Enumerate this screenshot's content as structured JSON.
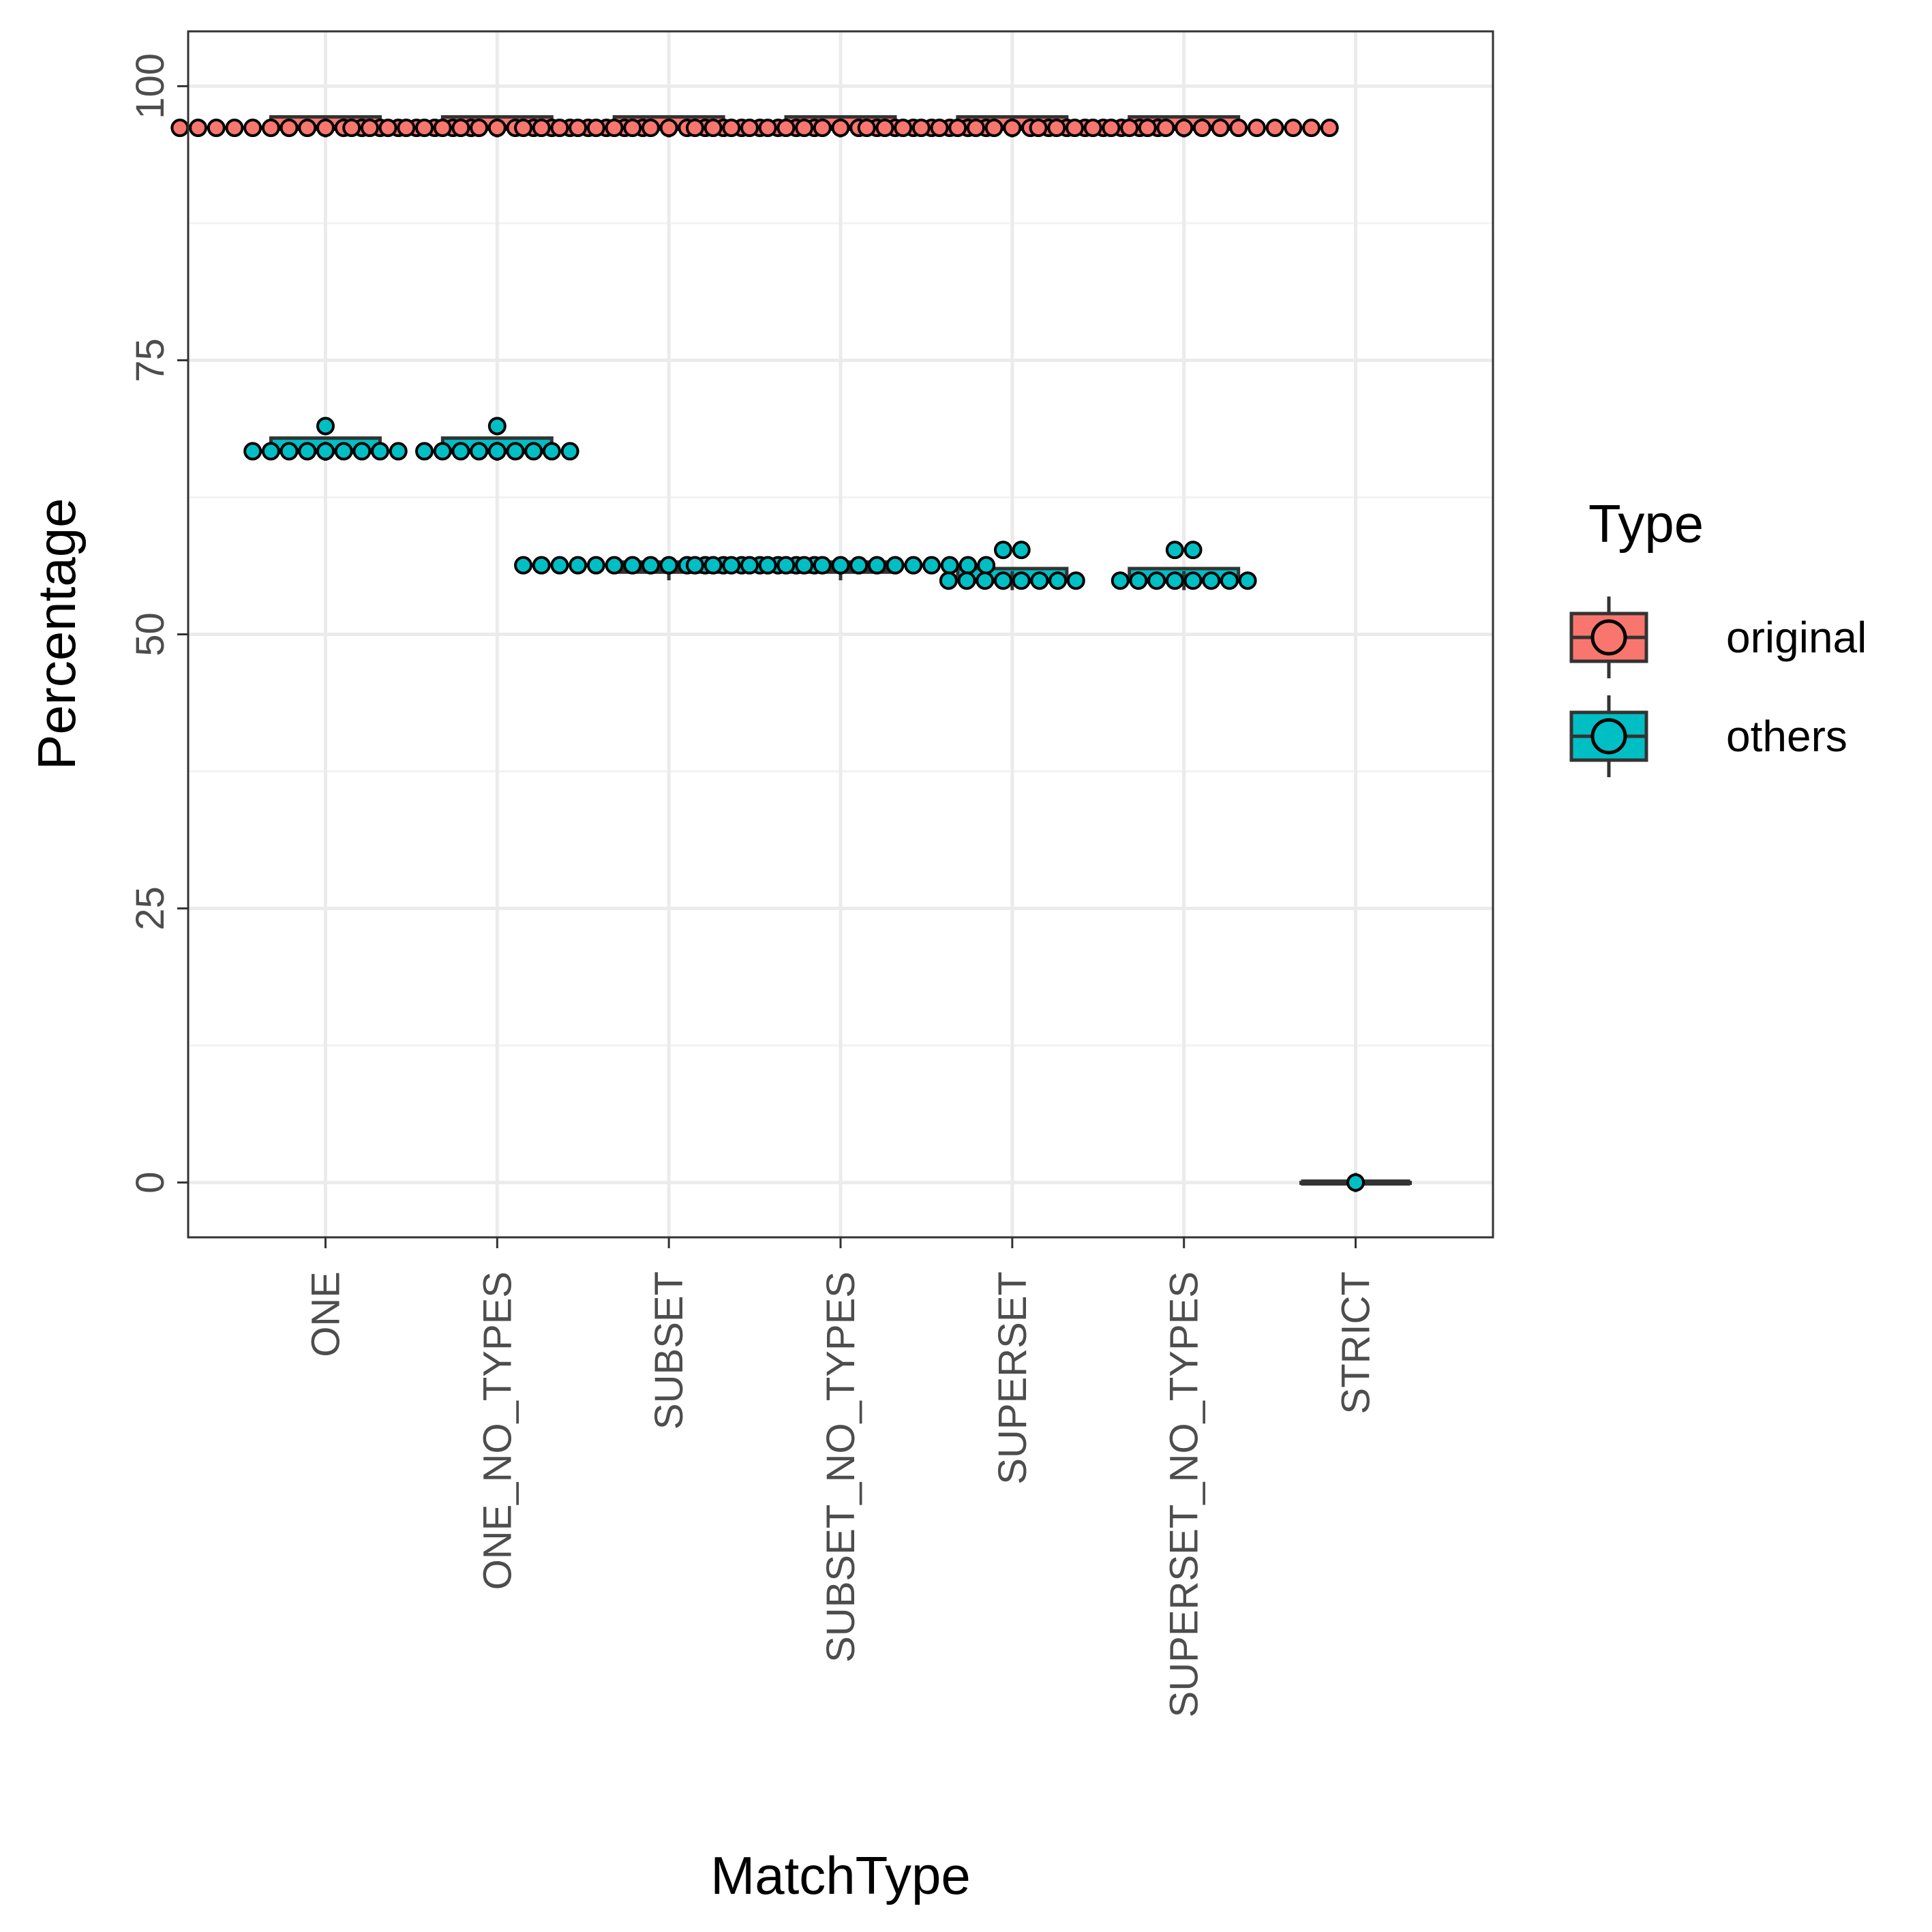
{
  "chart_data": {
    "type": "boxplot+dotplot",
    "xlabel": "MatchType",
    "ylabel": "Percentage",
    "categories": [
      "ONE",
      "ONE_NO_TYPES",
      "SUBSET",
      "SUBSET_NO_TYPES",
      "SUPERSET",
      "SUPERSET_NO_TYPES",
      "STRICT"
    ],
    "y_ticks": [
      0,
      25,
      50,
      75,
      100
    ],
    "ylim": [
      -5,
      105
    ],
    "grid": true,
    "legend": {
      "title": "Type",
      "position": "right",
      "entries": [
        {
          "label": "original",
          "color": "#F8766D"
        },
        {
          "label": "others",
          "color": "#00BFC4"
        }
      ]
    },
    "series": [
      {
        "name": "original",
        "color": "#F8766D",
        "groups": [
          {
            "category": "ONE",
            "box": {
              "q1": 96.2,
              "median": 96.2,
              "q3": 97.2
            },
            "dots": [
              {
                "y": 96.2,
                "count": 17
              }
            ]
          },
          {
            "category": "ONE_NO_TYPES",
            "box": {
              "q1": 96.2,
              "median": 96.2,
              "q3": 97.2
            },
            "dots": [
              {
                "y": 96.2,
                "count": 17
              }
            ]
          },
          {
            "category": "SUBSET",
            "box": {
              "q1": 96.2,
              "median": 96.2,
              "q3": 97.2
            },
            "dots": [
              {
                "y": 96.2,
                "count": 17
              }
            ]
          },
          {
            "category": "SUBSET_NO_TYPES",
            "box": {
              "q1": 96.2,
              "median": 96.2,
              "q3": 97.2
            },
            "dots": [
              {
                "y": 96.2,
                "count": 17
              }
            ]
          },
          {
            "category": "SUPERSET",
            "box": {
              "q1": 96.2,
              "median": 96.2,
              "q3": 97.2
            },
            "dots": [
              {
                "y": 96.2,
                "count": 17
              }
            ]
          },
          {
            "category": "SUPERSET_NO_TYPES",
            "box": {
              "q1": 96.2,
              "median": 96.2,
              "q3": 97.2
            },
            "dots": [
              {
                "y": 96.2,
                "count": 17
              }
            ]
          }
        ]
      },
      {
        "name": "others",
        "color": "#00BFC4",
        "groups": [
          {
            "category": "ONE",
            "box": {
              "q1": 66.7,
              "median": 66.7,
              "q3": 67.9
            },
            "dots": [
              {
                "y": 66.7,
                "count": 9
              },
              {
                "y": 69.0,
                "count": 1
              }
            ]
          },
          {
            "category": "ONE_NO_TYPES",
            "box": {
              "q1": 66.7,
              "median": 66.7,
              "q3": 67.9
            },
            "dots": [
              {
                "y": 66.7,
                "count": 9
              },
              {
                "y": 69.0,
                "count": 1
              }
            ]
          },
          {
            "category": "SUBSET",
            "box": {
              "q1": 55.8,
              "median": 55.8,
              "q3": 56.6
            },
            "dots": [
              {
                "y": 56.3,
                "count": 17
              }
            ]
          },
          {
            "category": "SUBSET_NO_TYPES",
            "box": {
              "q1": 55.8,
              "median": 55.8,
              "q3": 56.6
            },
            "dots": [
              {
                "y": 56.3,
                "count": 17
              }
            ]
          },
          {
            "category": "SUPERSET",
            "box": {
              "q1": 54.9,
              "median": 54.9,
              "q3": 56.0
            },
            "dots": [
              {
                "y": 54.9,
                "count": 8
              },
              {
                "y": 57.7,
                "count": 2
              }
            ]
          },
          {
            "category": "SUPERSET_NO_TYPES",
            "box": {
              "q1": 54.9,
              "median": 54.9,
              "q3": 56.0
            },
            "dots": [
              {
                "y": 54.9,
                "count": 8
              },
              {
                "y": 57.7,
                "count": 2
              }
            ]
          },
          {
            "category": "STRICT",
            "box": {
              "q1": 0,
              "median": 0,
              "q3": 0
            },
            "dots": [
              {
                "y": 0,
                "count": 1
              }
            ]
          }
        ]
      }
    ]
  }
}
